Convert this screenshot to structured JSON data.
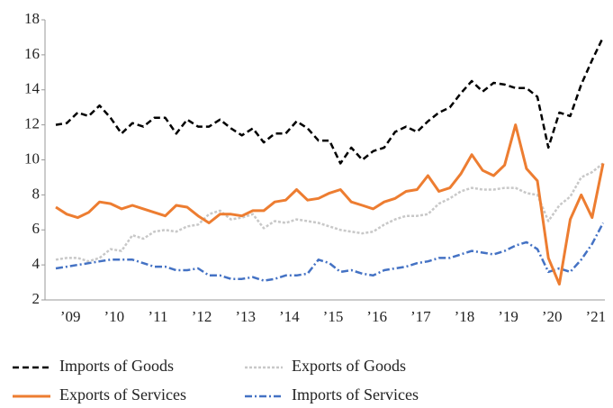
{
  "chart_data": {
    "type": "line",
    "categories": [
      null,
      "’09",
      null,
      null,
      null,
      "’10",
      null,
      null,
      null,
      "’11",
      null,
      null,
      null,
      "’12",
      null,
      null,
      null,
      "’13",
      null,
      null,
      null,
      "’14",
      null,
      null,
      null,
      "’15",
      null,
      null,
      null,
      "’16",
      null,
      null,
      null,
      "’17",
      null,
      null,
      null,
      "’18",
      null,
      null,
      null,
      "’19",
      null,
      null,
      null,
      "’20",
      null,
      null,
      null,
      "’21",
      null
    ],
    "series": [
      {
        "name": "Imports of Goods",
        "color": "#000000",
        "style": "dashed",
        "values": [
          12.0,
          12.1,
          12.7,
          12.5,
          13.1,
          12.4,
          11.5,
          12.1,
          11.9,
          12.4,
          12.4,
          11.5,
          12.3,
          11.9,
          11.9,
          12.3,
          11.8,
          11.4,
          11.8,
          11.0,
          11.5,
          11.5,
          12.2,
          11.8,
          11.1,
          11.1,
          9.8,
          10.7,
          10.0,
          10.5,
          10.7,
          11.6,
          11.9,
          11.6,
          12.2,
          12.7,
          13.0,
          13.8,
          14.5,
          13.9,
          14.4,
          14.3,
          14.1,
          14.1,
          13.6,
          10.7,
          12.7,
          12.5,
          14.3,
          15.7,
          17.0
        ]
      },
      {
        "name": "Exports of Goods",
        "color": "#c8c8c8",
        "style": "dotted",
        "values": [
          4.3,
          4.4,
          4.4,
          4.2,
          4.4,
          4.9,
          4.8,
          5.7,
          5.5,
          5.9,
          6.0,
          5.9,
          6.2,
          6.3,
          6.9,
          7.1,
          6.6,
          6.7,
          6.9,
          6.1,
          6.5,
          6.4,
          6.6,
          6.5,
          6.4,
          6.2,
          6.0,
          5.9,
          5.8,
          5.9,
          6.3,
          6.6,
          6.8,
          6.8,
          6.9,
          7.5,
          7.8,
          8.2,
          8.4,
          8.3,
          8.3,
          8.4,
          8.4,
          8.1,
          8.0,
          6.5,
          7.4,
          7.9,
          9.0,
          9.3,
          9.8
        ]
      },
      {
        "name": "Exports of Services",
        "color": "#ed7d31",
        "style": "solid",
        "values": [
          7.3,
          6.9,
          6.7,
          7.0,
          7.6,
          7.5,
          7.2,
          7.4,
          7.2,
          7.0,
          6.8,
          7.4,
          7.3,
          6.8,
          6.4,
          6.9,
          6.9,
          6.8,
          7.1,
          7.1,
          7.6,
          7.7,
          8.3,
          7.7,
          7.8,
          8.1,
          8.3,
          7.6,
          7.4,
          7.2,
          7.6,
          7.8,
          8.2,
          8.3,
          9.1,
          8.2,
          8.4,
          9.2,
          10.3,
          9.4,
          9.1,
          9.7,
          12.0,
          9.5,
          8.8,
          4.4,
          2.9,
          6.6,
          8.0,
          6.7,
          9.8
        ]
      },
      {
        "name": "Imports of Services",
        "color": "#4472c4",
        "style": "dashdot",
        "values": [
          3.8,
          3.9,
          4.0,
          4.1,
          4.2,
          4.3,
          4.3,
          4.3,
          4.1,
          3.9,
          3.9,
          3.7,
          3.7,
          3.8,
          3.4,
          3.4,
          3.2,
          3.2,
          3.3,
          3.1,
          3.2,
          3.4,
          3.4,
          3.5,
          4.3,
          4.1,
          3.6,
          3.7,
          3.5,
          3.4,
          3.7,
          3.8,
          3.9,
          4.1,
          4.2,
          4.4,
          4.4,
          4.6,
          4.8,
          4.7,
          4.6,
          4.8,
          5.1,
          5.3,
          4.9,
          3.6,
          3.8,
          3.6,
          4.3,
          5.2,
          6.4
        ]
      }
    ],
    "ylim": [
      2,
      18
    ],
    "yticks": [
      2,
      4,
      6,
      8,
      10,
      12,
      14,
      16,
      18
    ],
    "grid": false
  }
}
